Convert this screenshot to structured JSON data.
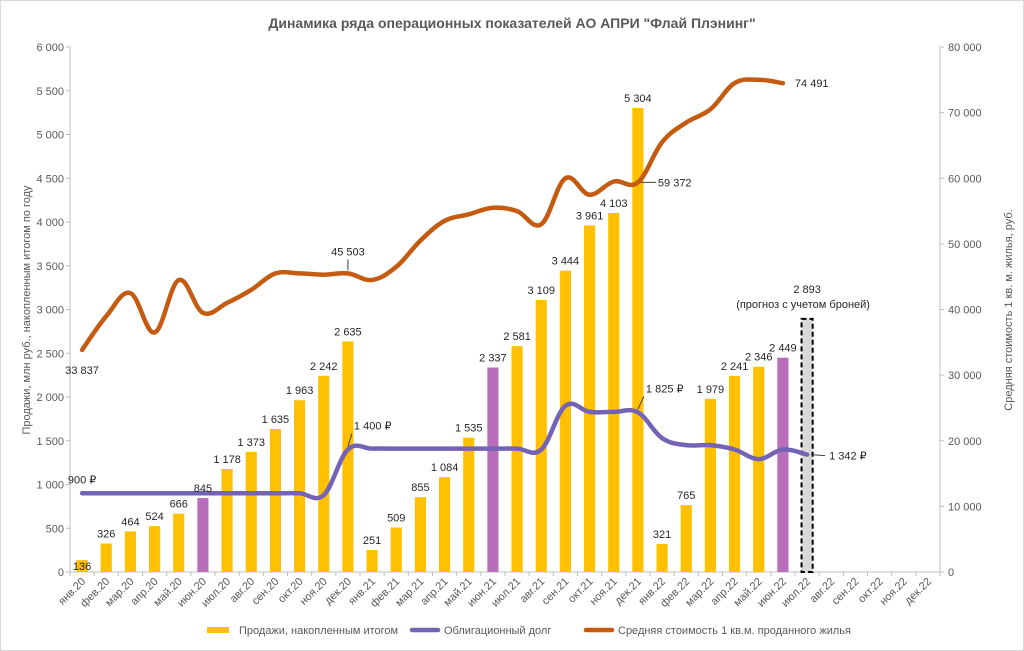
{
  "chart_data": {
    "type": "bar",
    "title": "Динамика ряда операционных показателей АО АПРИ \"Флай Плэнинг\"",
    "ylabel": "Продажи, млн руб., накопленным итогом по году",
    "y2label": "Средняя стоимость 1 кв. м. жилья, руб.",
    "ylim": [
      0,
      6000
    ],
    "y2lim": [
      0,
      80000
    ],
    "yticks": [
      "0",
      "500",
      "1 000",
      "1 500",
      "2 000",
      "2 500",
      "3 000",
      "3 500",
      "4 000",
      "4 500",
      "5 000",
      "5 500",
      "6 000"
    ],
    "y2ticks": [
      "0",
      "10 000",
      "20 000",
      "30 000",
      "40 000",
      "50 000",
      "60 000",
      "70 000",
      "80 000"
    ],
    "grid": false,
    "legend_position": "bottom",
    "categories": [
      "янв.20",
      "фев.20",
      "мар.20",
      "апр.20",
      "май.20",
      "июн.20",
      "июл.20",
      "авг.20",
      "сен.20",
      "окт.20",
      "ноя.20",
      "дек.20",
      "янв.21",
      "фев.21",
      "мар.21",
      "апр.21",
      "май.21",
      "июн.21",
      "июл.21",
      "авг.21",
      "сен.21",
      "окт.21",
      "ноя.21",
      "дек.21",
      "янв.22",
      "фев.22",
      "мар.22",
      "апр.22",
      "май.22",
      "июн.22",
      "июл.22",
      "авг.22",
      "сен.22",
      "окт.22",
      "ноя.22",
      "дек.22"
    ],
    "series": [
      {
        "name": "Продажи, накопленным итогом",
        "type": "bar",
        "axis": "left",
        "color": "#FFC000",
        "highlight_color": "#B76FBC",
        "highlight_indices": [
          5,
          17,
          29
        ],
        "values": [
          136,
          326,
          464,
          524,
          666,
          845,
          1178,
          1373,
          1635,
          1963,
          2242,
          2635,
          251,
          509,
          855,
          1084,
          1535,
          2337,
          2581,
          3109,
          3444,
          3961,
          4103,
          5304,
          321,
          765,
          1979,
          2241,
          2346,
          2449,
          null,
          null,
          null,
          null,
          null,
          null
        ],
        "labels": [
          "136",
          "326",
          "464",
          "524",
          "666",
          "845",
          "1 178",
          "1 373",
          "1 635",
          "1 963",
          "2 242",
          "2 635",
          "251",
          "509",
          "855",
          "1 084",
          "1 535",
          "2 337",
          "2 581",
          "3 109",
          "3 444",
          "3 961",
          "4 103",
          "5 304",
          "321",
          "765",
          "1 979",
          "2 241",
          "2 346",
          "2 449",
          "",
          "",
          "",
          "",
          "",
          ""
        ]
      },
      {
        "name": "Облигационный долг",
        "type": "line",
        "axis": "left",
        "color": "#7463B4",
        "values": [
          900,
          900,
          900,
          900,
          900,
          900,
          900,
          900,
          900,
          900,
          880,
          1400,
          1410,
          1410,
          1410,
          1410,
          1410,
          1410,
          1410,
          1400,
          1900,
          1830,
          1830,
          1825,
          1530,
          1450,
          1450,
          1400,
          1290,
          1400,
          1342,
          null,
          null,
          null,
          null,
          null
        ]
      },
      {
        "name": "Средняя стоимость 1 кв.м. проданного жилья",
        "type": "line",
        "axis": "right",
        "color": "#C55A11",
        "values": [
          33837,
          39000,
          42500,
          36500,
          44500,
          39500,
          41000,
          43000,
          45500,
          45500,
          45300,
          45503,
          44500,
          46500,
          50500,
          53500,
          54500,
          55500,
          55000,
          53000,
          60000,
          57500,
          59500,
          59372,
          65500,
          68500,
          70500,
          74500,
          75000,
          74491,
          null,
          null,
          null,
          null,
          null,
          null
        ]
      }
    ],
    "forecast": {
      "category": "июл.22",
      "value": 2893,
      "label": "2 893",
      "note": "(прогноз с учетом броней)"
    },
    "annotations": {
      "debt": [
        {
          "index": 0,
          "text": "900 ₽"
        },
        {
          "index": 11,
          "text": "1 400 ₽"
        },
        {
          "index": 23,
          "text": "1 825 ₽"
        },
        {
          "index": 30,
          "text": "1 342 ₽"
        }
      ],
      "price": [
        {
          "index": 0,
          "text": "33 837"
        },
        {
          "index": 11,
          "text": "45 503"
        },
        {
          "index": 23,
          "text": "59 372"
        },
        {
          "index": 29,
          "text": "74 491"
        }
      ]
    }
  },
  "colors": {
    "bar": "#FFC000",
    "bar_highlight": "#B76FBC",
    "debt_line": "#7463B4",
    "price_line": "#C55A11",
    "axis": "#BFBFBF",
    "text": "#595959",
    "forecast_fill": "#D9D9D9"
  }
}
